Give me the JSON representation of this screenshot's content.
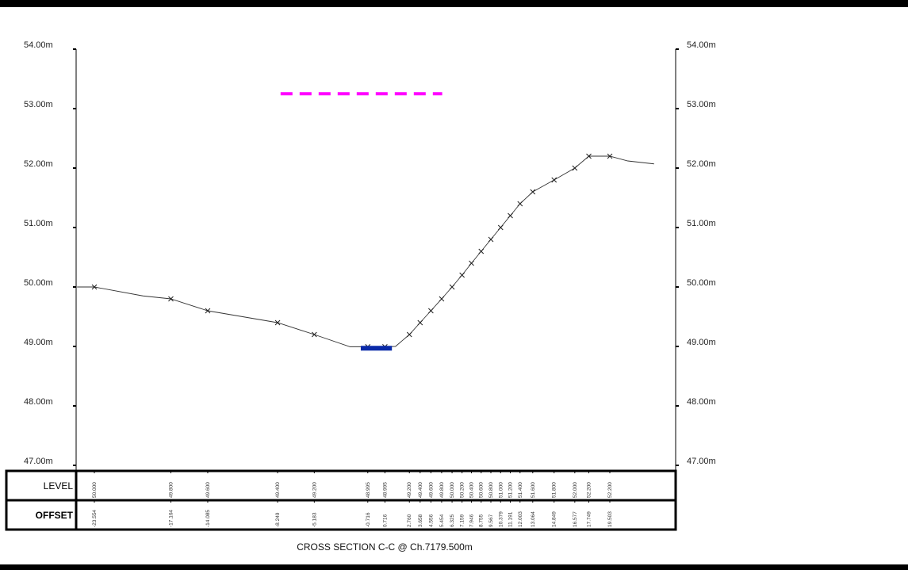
{
  "title": "CROSS SECTION C-C @ Ch.7179.500m",
  "row_labels": {
    "level": "LEVEL",
    "offset": "OFFSET"
  },
  "colors": {
    "ground": "#333333",
    "marker": "#222222",
    "water": "#0a2aa8",
    "design_line": "#ff00ff",
    "frame": "#000000"
  },
  "chart_data": {
    "type": "line",
    "title": "CROSS SECTION C-C @ Ch.7179.500m",
    "xlabel": "OFFSET",
    "ylabel": "LEVEL",
    "ylim": [
      47.0,
      54.0
    ],
    "xlim": [
      -23.554,
      23.2
    ],
    "y_ticks": [
      "47.00m",
      "48.00m",
      "49.00m",
      "50.00m",
      "51.00m",
      "52.00m",
      "53.00m",
      "54.00m"
    ],
    "y_tick_values": [
      47,
      48,
      49,
      50,
      51,
      52,
      53,
      54
    ],
    "series": [
      {
        "points": [
          {
            "offset": -25.0,
            "level": 50.0,
            "marked": false
          },
          {
            "offset": -23.554,
            "level": 50.0,
            "marked": true,
            "offset_label": "-23.554",
            "level_label": "50.000"
          },
          {
            "offset": -19.5,
            "level": 49.85,
            "marked": false
          },
          {
            "offset": -17.164,
            "level": 49.8,
            "marked": true,
            "offset_label": "-17.164",
            "level_label": "49.800"
          },
          {
            "offset": -14.085,
            "level": 49.6,
            "marked": true,
            "offset_label": "-14.085",
            "level_label": "49.600"
          },
          {
            "offset": -8.249,
            "level": 49.4,
            "marked": true,
            "offset_label": "-8.249",
            "level_label": "49.400"
          },
          {
            "offset": -5.183,
            "level": 49.2,
            "marked": true,
            "offset_label": "-5.183",
            "level_label": "49.200"
          },
          {
            "offset": -2.2,
            "level": 48.995,
            "marked": false
          },
          {
            "offset": -0.716,
            "level": 48.995,
            "marked": true,
            "offset_label": "-0.716",
            "level_label": "48.995"
          },
          {
            "offset": 0.716,
            "level": 48.995,
            "marked": true,
            "offset_label": "0.716",
            "level_label": "48.995"
          },
          {
            "offset": 1.6,
            "level": 49.0,
            "marked": false
          },
          {
            "offset": 2.76,
            "level": 49.2,
            "marked": true,
            "offset_label": "2.760",
            "level_label": "49.200"
          },
          {
            "offset": 3.658,
            "level": 49.4,
            "marked": true,
            "offset_label": "3.658",
            "level_label": "49.400"
          },
          {
            "offset": 4.556,
            "level": 49.6,
            "marked": true,
            "offset_label": "4.556",
            "level_label": "49.600"
          },
          {
            "offset": 5.454,
            "level": 49.8,
            "marked": true,
            "offset_label": "5.454",
            "level_label": "49.800"
          },
          {
            "offset": 6.325,
            "level": 50.0,
            "marked": true,
            "offset_label": "6.325",
            "level_label": "50.000"
          },
          {
            "offset": 7.159,
            "level": 50.2,
            "marked": true,
            "offset_label": "7.159",
            "level_label": "50.200"
          },
          {
            "offset": 7.946,
            "level": 50.4,
            "marked": true,
            "offset_label": "7.946",
            "level_label": "50.400"
          },
          {
            "offset": 8.755,
            "level": 50.6,
            "marked": true,
            "offset_label": "8.755",
            "level_label": "50.600"
          },
          {
            "offset": 9.567,
            "level": 50.8,
            "marked": true,
            "offset_label": "9.567",
            "level_label": "50.800"
          },
          {
            "offset": 10.379,
            "level": 51.0,
            "marked": true,
            "offset_label": "10.379",
            "level_label": "51.000"
          },
          {
            "offset": 11.191,
            "level": 51.2,
            "marked": true,
            "offset_label": "11.191",
            "level_label": "51.200"
          },
          {
            "offset": 12.003,
            "level": 51.4,
            "marked": true,
            "offset_label": "12.003",
            "level_label": "51.400"
          },
          {
            "offset": 13.064,
            "level": 51.6,
            "marked": true,
            "offset_label": "13.064",
            "level_label": "51.600"
          },
          {
            "offset": 14.849,
            "level": 51.8,
            "marked": true,
            "offset_label": "14.849",
            "level_label": "51.800"
          },
          {
            "offset": 16.577,
            "level": 52.0,
            "marked": true,
            "offset_label": "16.577",
            "level_label": "52.000"
          },
          {
            "offset": 17.749,
            "level": 52.2,
            "marked": true,
            "offset_label": "17.749",
            "level_label": "52.200"
          },
          {
            "offset": 19.503,
            "level": 52.2,
            "marked": true,
            "offset_label": "19.503",
            "level_label": "52.200"
          },
          {
            "offset": 21.0,
            "level": 52.12,
            "marked": false
          },
          {
            "offset": 23.2,
            "level": 52.07,
            "marked": false
          }
        ]
      }
    ],
    "water_surface": {
      "from": -1.3,
      "to": 1.3,
      "level": 48.97
    },
    "design_level": {
      "from": -8.0,
      "to": 5.5,
      "level": 53.25
    }
  }
}
